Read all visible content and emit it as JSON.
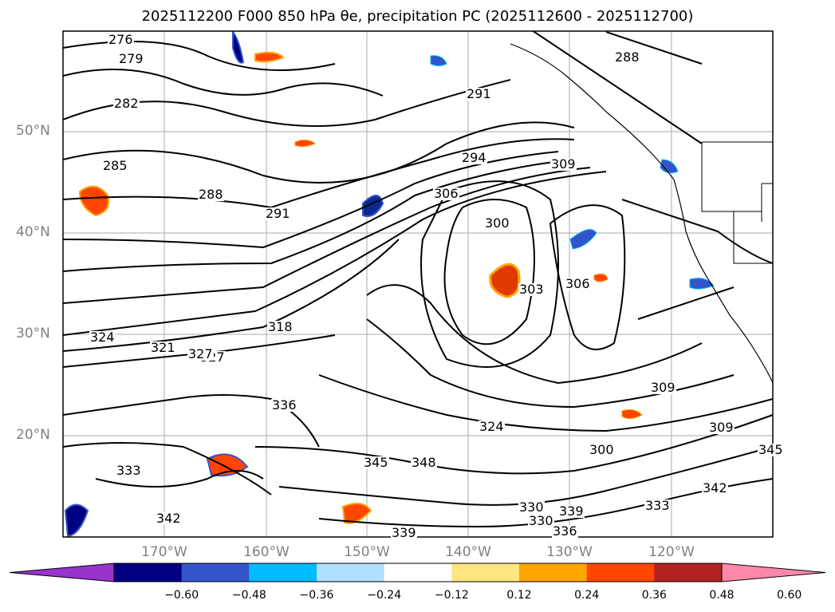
{
  "title": "2025112200 F000 850 hPa θe, precipitation PC (2025112600 - 2025112700)",
  "map": {
    "lat_labels": [
      "50°N",
      "40°N",
      "30°N",
      "20°N"
    ],
    "lon_labels": [
      "170°W",
      "160°W",
      "150°W",
      "140°W",
      "130°W",
      "120°W"
    ],
    "contour_labels": [
      "276",
      "279",
      "282",
      "285",
      "288",
      "291",
      "294",
      "300",
      "306",
      "309",
      "303",
      "327",
      "324",
      "321",
      "318",
      "336",
      "333",
      "339",
      "342",
      "330",
      "345",
      "288",
      "291",
      "309",
      "300",
      "306",
      "309",
      "324",
      "327",
      "330",
      "333",
      "336",
      "339",
      "342",
      "345",
      "348"
    ]
  },
  "colorbar": {
    "ticks": [
      "−0.60",
      "−0.48",
      "−0.36",
      "−0.24",
      "−0.12",
      "0.12",
      "0.24",
      "0.36",
      "0.48",
      "0.60"
    ],
    "colors": [
      "#9933cc",
      "#000080",
      "#3355cc",
      "#00bbff",
      "#b0e0ff",
      "#ffffff",
      "#ffe680",
      "#ffa500",
      "#ff4500",
      "#b22222",
      "#ff88aa"
    ]
  }
}
